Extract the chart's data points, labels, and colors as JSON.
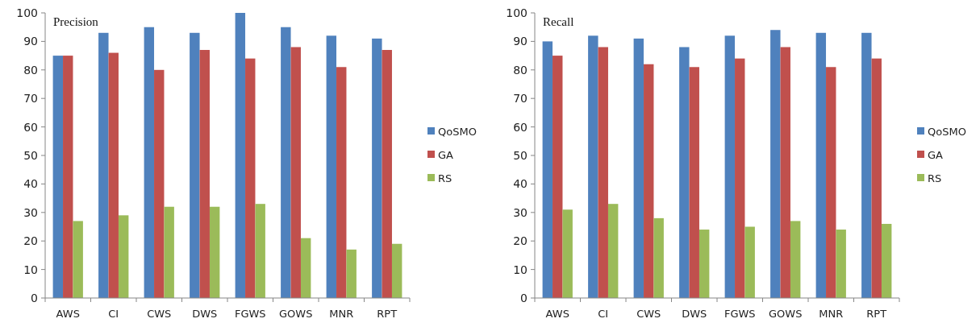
{
  "chart_data": [
    {
      "type": "bar",
      "title": "Precision",
      "categories": [
        "AWS",
        "CI",
        "CWS",
        "DWS",
        "FGWS",
        "GOWS",
        "MNR",
        "RPT"
      ],
      "series": [
        {
          "name": "QoSMO",
          "color": "#4f81bd",
          "values": [
            85,
            93,
            95,
            93,
            100,
            95,
            92,
            91
          ]
        },
        {
          "name": "GA",
          "color": "#c0504d",
          "values": [
            85,
            86,
            80,
            87,
            84,
            88,
            81,
            87
          ]
        },
        {
          "name": "RS",
          "color": "#9bbb59",
          "values": [
            27,
            29,
            32,
            32,
            33,
            21,
            17,
            19
          ]
        }
      ],
      "ylim": [
        0,
        100
      ],
      "yticks": [
        0,
        10,
        20,
        30,
        40,
        50,
        60,
        70,
        80,
        90,
        100
      ],
      "grid": false,
      "legend": "right"
    },
    {
      "type": "bar",
      "title": "Recall",
      "categories": [
        "AWS",
        "CI",
        "CWS",
        "DWS",
        "FGWS",
        "GOWS",
        "MNR",
        "RPT"
      ],
      "series": [
        {
          "name": "QoSMO",
          "color": "#4f81bd",
          "values": [
            90,
            92,
            91,
            88,
            92,
            94,
            93,
            93
          ]
        },
        {
          "name": "GA",
          "color": "#c0504d",
          "values": [
            85,
            88,
            82,
            81,
            84,
            88,
            81,
            84
          ]
        },
        {
          "name": "RS",
          "color": "#9bbb59",
          "values": [
            31,
            33,
            28,
            24,
            25,
            27,
            24,
            26
          ]
        }
      ],
      "ylim": [
        0,
        100
      ],
      "yticks": [
        0,
        10,
        20,
        30,
        40,
        50,
        60,
        70,
        80,
        90,
        100
      ],
      "grid": false,
      "legend": "right"
    }
  ]
}
